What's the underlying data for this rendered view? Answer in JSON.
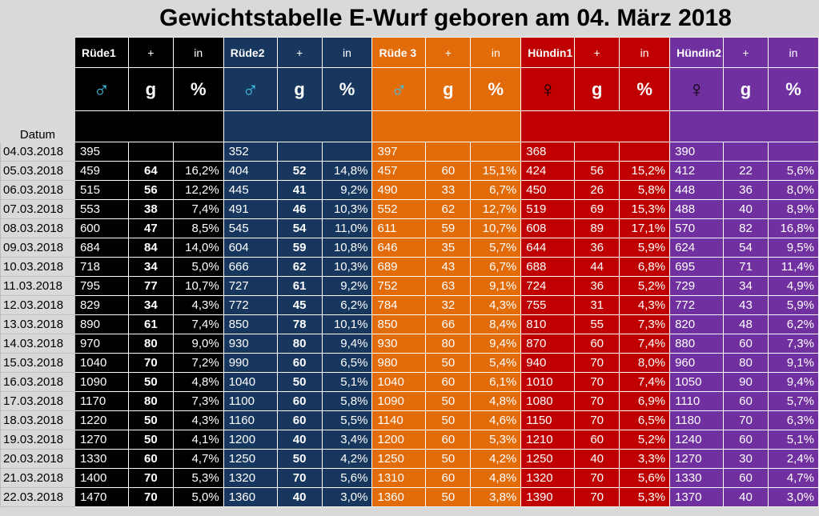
{
  "title": "Gewichtstabelle E-Wurf geboren am 04. März 2018",
  "datum_label": "Datum",
  "unit_g": "g",
  "unit_pct": "%",
  "plus_label": "+",
  "in_label": "in",
  "male_symbol": "♂",
  "female_symbol": "♀",
  "colors": {
    "ruede1": "#000000",
    "ruede2": "#17375e",
    "ruede3": "#e26b0a",
    "huendin1": "#c00000",
    "huendin2": "#7030a0",
    "male_symbol": "#3fc4e8"
  },
  "puppies": [
    {
      "name": "Rüde1",
      "sex": "male"
    },
    {
      "name": "Rüde2",
      "sex": "male"
    },
    {
      "name": "Rüde 3",
      "sex": "male"
    },
    {
      "name": "Hündin1",
      "sex": "female"
    },
    {
      "name": "Hündin2",
      "sex": "female"
    }
  ],
  "rows": [
    {
      "date": "04.03.2018",
      "cells": [
        [
          "395",
          "",
          ""
        ],
        [
          "352",
          "",
          ""
        ],
        [
          "397",
          "",
          ""
        ],
        [
          "368",
          "",
          ""
        ],
        [
          "390",
          "",
          ""
        ]
      ]
    },
    {
      "date": "05.03.2018",
      "cells": [
        [
          "459",
          "64",
          "16,2%"
        ],
        [
          "404",
          "52",
          "14,8%"
        ],
        [
          "457",
          "60",
          "15,1%"
        ],
        [
          "424",
          "56",
          "15,2%"
        ],
        [
          "412",
          "22",
          "5,6%"
        ]
      ]
    },
    {
      "date": "06.03.2018",
      "cells": [
        [
          "515",
          "56",
          "12,2%"
        ],
        [
          "445",
          "41",
          "9,2%"
        ],
        [
          "490",
          "33",
          "6,7%"
        ],
        [
          "450",
          "26",
          "5,8%"
        ],
        [
          "448",
          "36",
          "8,0%"
        ]
      ]
    },
    {
      "date": "07.03.2018",
      "cells": [
        [
          "553",
          "38",
          "7,4%"
        ],
        [
          "491",
          "46",
          "10,3%"
        ],
        [
          "552",
          "62",
          "12,7%"
        ],
        [
          "519",
          "69",
          "15,3%"
        ],
        [
          "488",
          "40",
          "8,9%"
        ]
      ]
    },
    {
      "date": "08.03.2018",
      "cells": [
        [
          "600",
          "47",
          "8,5%"
        ],
        [
          "545",
          "54",
          "11,0%"
        ],
        [
          "611",
          "59",
          "10,7%"
        ],
        [
          "608",
          "89",
          "17,1%"
        ],
        [
          "570",
          "82",
          "16,8%"
        ]
      ]
    },
    {
      "date": "09.03.2018",
      "cells": [
        [
          "684",
          "84",
          "14,0%"
        ],
        [
          "604",
          "59",
          "10,8%"
        ],
        [
          "646",
          "35",
          "5,7%"
        ],
        [
          "644",
          "36",
          "5,9%"
        ],
        [
          "624",
          "54",
          "9,5%"
        ]
      ]
    },
    {
      "date": "10.03.2018",
      "cells": [
        [
          "718",
          "34",
          "5,0%"
        ],
        [
          "666",
          "62",
          "10,3%"
        ],
        [
          "689",
          "43",
          "6,7%"
        ],
        [
          "688",
          "44",
          "6,8%"
        ],
        [
          "695",
          "71",
          "11,4%"
        ]
      ]
    },
    {
      "date": "11.03.2018",
      "cells": [
        [
          "795",
          "77",
          "10,7%"
        ],
        [
          "727",
          "61",
          "9,2%"
        ],
        [
          "752",
          "63",
          "9,1%"
        ],
        [
          "724",
          "36",
          "5,2%"
        ],
        [
          "729",
          "34",
          "4,9%"
        ]
      ]
    },
    {
      "date": "12.03.2018",
      "cells": [
        [
          "829",
          "34",
          "4,3%"
        ],
        [
          "772",
          "45",
          "6,2%"
        ],
        [
          "784",
          "32",
          "4,3%"
        ],
        [
          "755",
          "31",
          "4,3%"
        ],
        [
          "772",
          "43",
          "5,9%"
        ]
      ]
    },
    {
      "date": "13.03.2018",
      "cells": [
        [
          "890",
          "61",
          "7,4%"
        ],
        [
          "850",
          "78",
          "10,1%"
        ],
        [
          "850",
          "66",
          "8,4%"
        ],
        [
          "810",
          "55",
          "7,3%"
        ],
        [
          "820",
          "48",
          "6,2%"
        ]
      ]
    },
    {
      "date": "14.03.2018",
      "cells": [
        [
          "970",
          "80",
          "9,0%"
        ],
        [
          "930",
          "80",
          "9,4%"
        ],
        [
          "930",
          "80",
          "9,4%"
        ],
        [
          "870",
          "60",
          "7,4%"
        ],
        [
          "880",
          "60",
          "7,3%"
        ]
      ]
    },
    {
      "date": "15.03.2018",
      "cells": [
        [
          "1040",
          "70",
          "7,2%"
        ],
        [
          "990",
          "60",
          "6,5%"
        ],
        [
          "980",
          "50",
          "5,4%"
        ],
        [
          "940",
          "70",
          "8,0%"
        ],
        [
          "960",
          "80",
          "9,1%"
        ]
      ]
    },
    {
      "date": "16.03.2018",
      "cells": [
        [
          "1090",
          "50",
          "4,8%"
        ],
        [
          "1040",
          "50",
          "5,1%"
        ],
        [
          "1040",
          "60",
          "6,1%"
        ],
        [
          "1010",
          "70",
          "7,4%"
        ],
        [
          "1050",
          "90",
          "9,4%"
        ]
      ]
    },
    {
      "date": "17.03.2018",
      "cells": [
        [
          "1170",
          "80",
          "7,3%"
        ],
        [
          "1100",
          "60",
          "5,8%"
        ],
        [
          "1090",
          "50",
          "4,8%"
        ],
        [
          "1080",
          "70",
          "6,9%"
        ],
        [
          "1110",
          "60",
          "5,7%"
        ]
      ]
    },
    {
      "date": "18.03.2018",
      "cells": [
        [
          "1220",
          "50",
          "4,3%"
        ],
        [
          "1160",
          "60",
          "5,5%"
        ],
        [
          "1140",
          "50",
          "4,6%"
        ],
        [
          "1150",
          "70",
          "6,5%"
        ],
        [
          "1180",
          "70",
          "6,3%"
        ]
      ]
    },
    {
      "date": "19.03.2018",
      "cells": [
        [
          "1270",
          "50",
          "4,1%"
        ],
        [
          "1200",
          "40",
          "3,4%"
        ],
        [
          "1200",
          "60",
          "5,3%"
        ],
        [
          "1210",
          "60",
          "5,2%"
        ],
        [
          "1240",
          "60",
          "5,1%"
        ]
      ]
    },
    {
      "date": "20.03.2018",
      "cells": [
        [
          "1330",
          "60",
          "4,7%"
        ],
        [
          "1250",
          "50",
          "4,2%"
        ],
        [
          "1250",
          "50",
          "4,2%"
        ],
        [
          "1250",
          "40",
          "3,3%"
        ],
        [
          "1270",
          "30",
          "2,4%"
        ]
      ]
    },
    {
      "date": "21.03.2018",
      "cells": [
        [
          "1400",
          "70",
          "5,3%"
        ],
        [
          "1320",
          "70",
          "5,6%"
        ],
        [
          "1310",
          "60",
          "4,8%"
        ],
        [
          "1320",
          "70",
          "5,6%"
        ],
        [
          "1330",
          "60",
          "4,7%"
        ]
      ]
    },
    {
      "date": "22.03.2018",
      "cells": [
        [
          "1470",
          "70",
          "5,0%"
        ],
        [
          "1360",
          "40",
          "3,0%"
        ],
        [
          "1360",
          "50",
          "3,8%"
        ],
        [
          "1390",
          "70",
          "5,3%"
        ],
        [
          "1370",
          "40",
          "3,0%"
        ]
      ]
    }
  ]
}
